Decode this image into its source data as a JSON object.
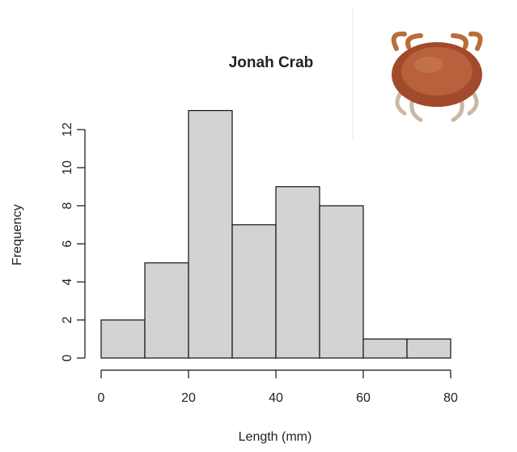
{
  "chart_data": {
    "type": "histogram",
    "title": "Jonah Crab",
    "x_label": "Length (mm)",
    "y_label": "Frequency",
    "bins": [
      0,
      10,
      20,
      30,
      40,
      50,
      60,
      70,
      80
    ],
    "values": [
      2,
      5,
      13,
      7,
      9,
      8,
      1,
      1
    ],
    "color": "#d3d3d3",
    "xlim": [
      0,
      80
    ],
    "xticks": [
      0,
      20,
      40,
      60,
      80
    ],
    "ylim": [
      0,
      13
    ],
    "yticks": [
      0,
      2,
      4,
      6,
      8,
      10,
      12
    ]
  }
}
